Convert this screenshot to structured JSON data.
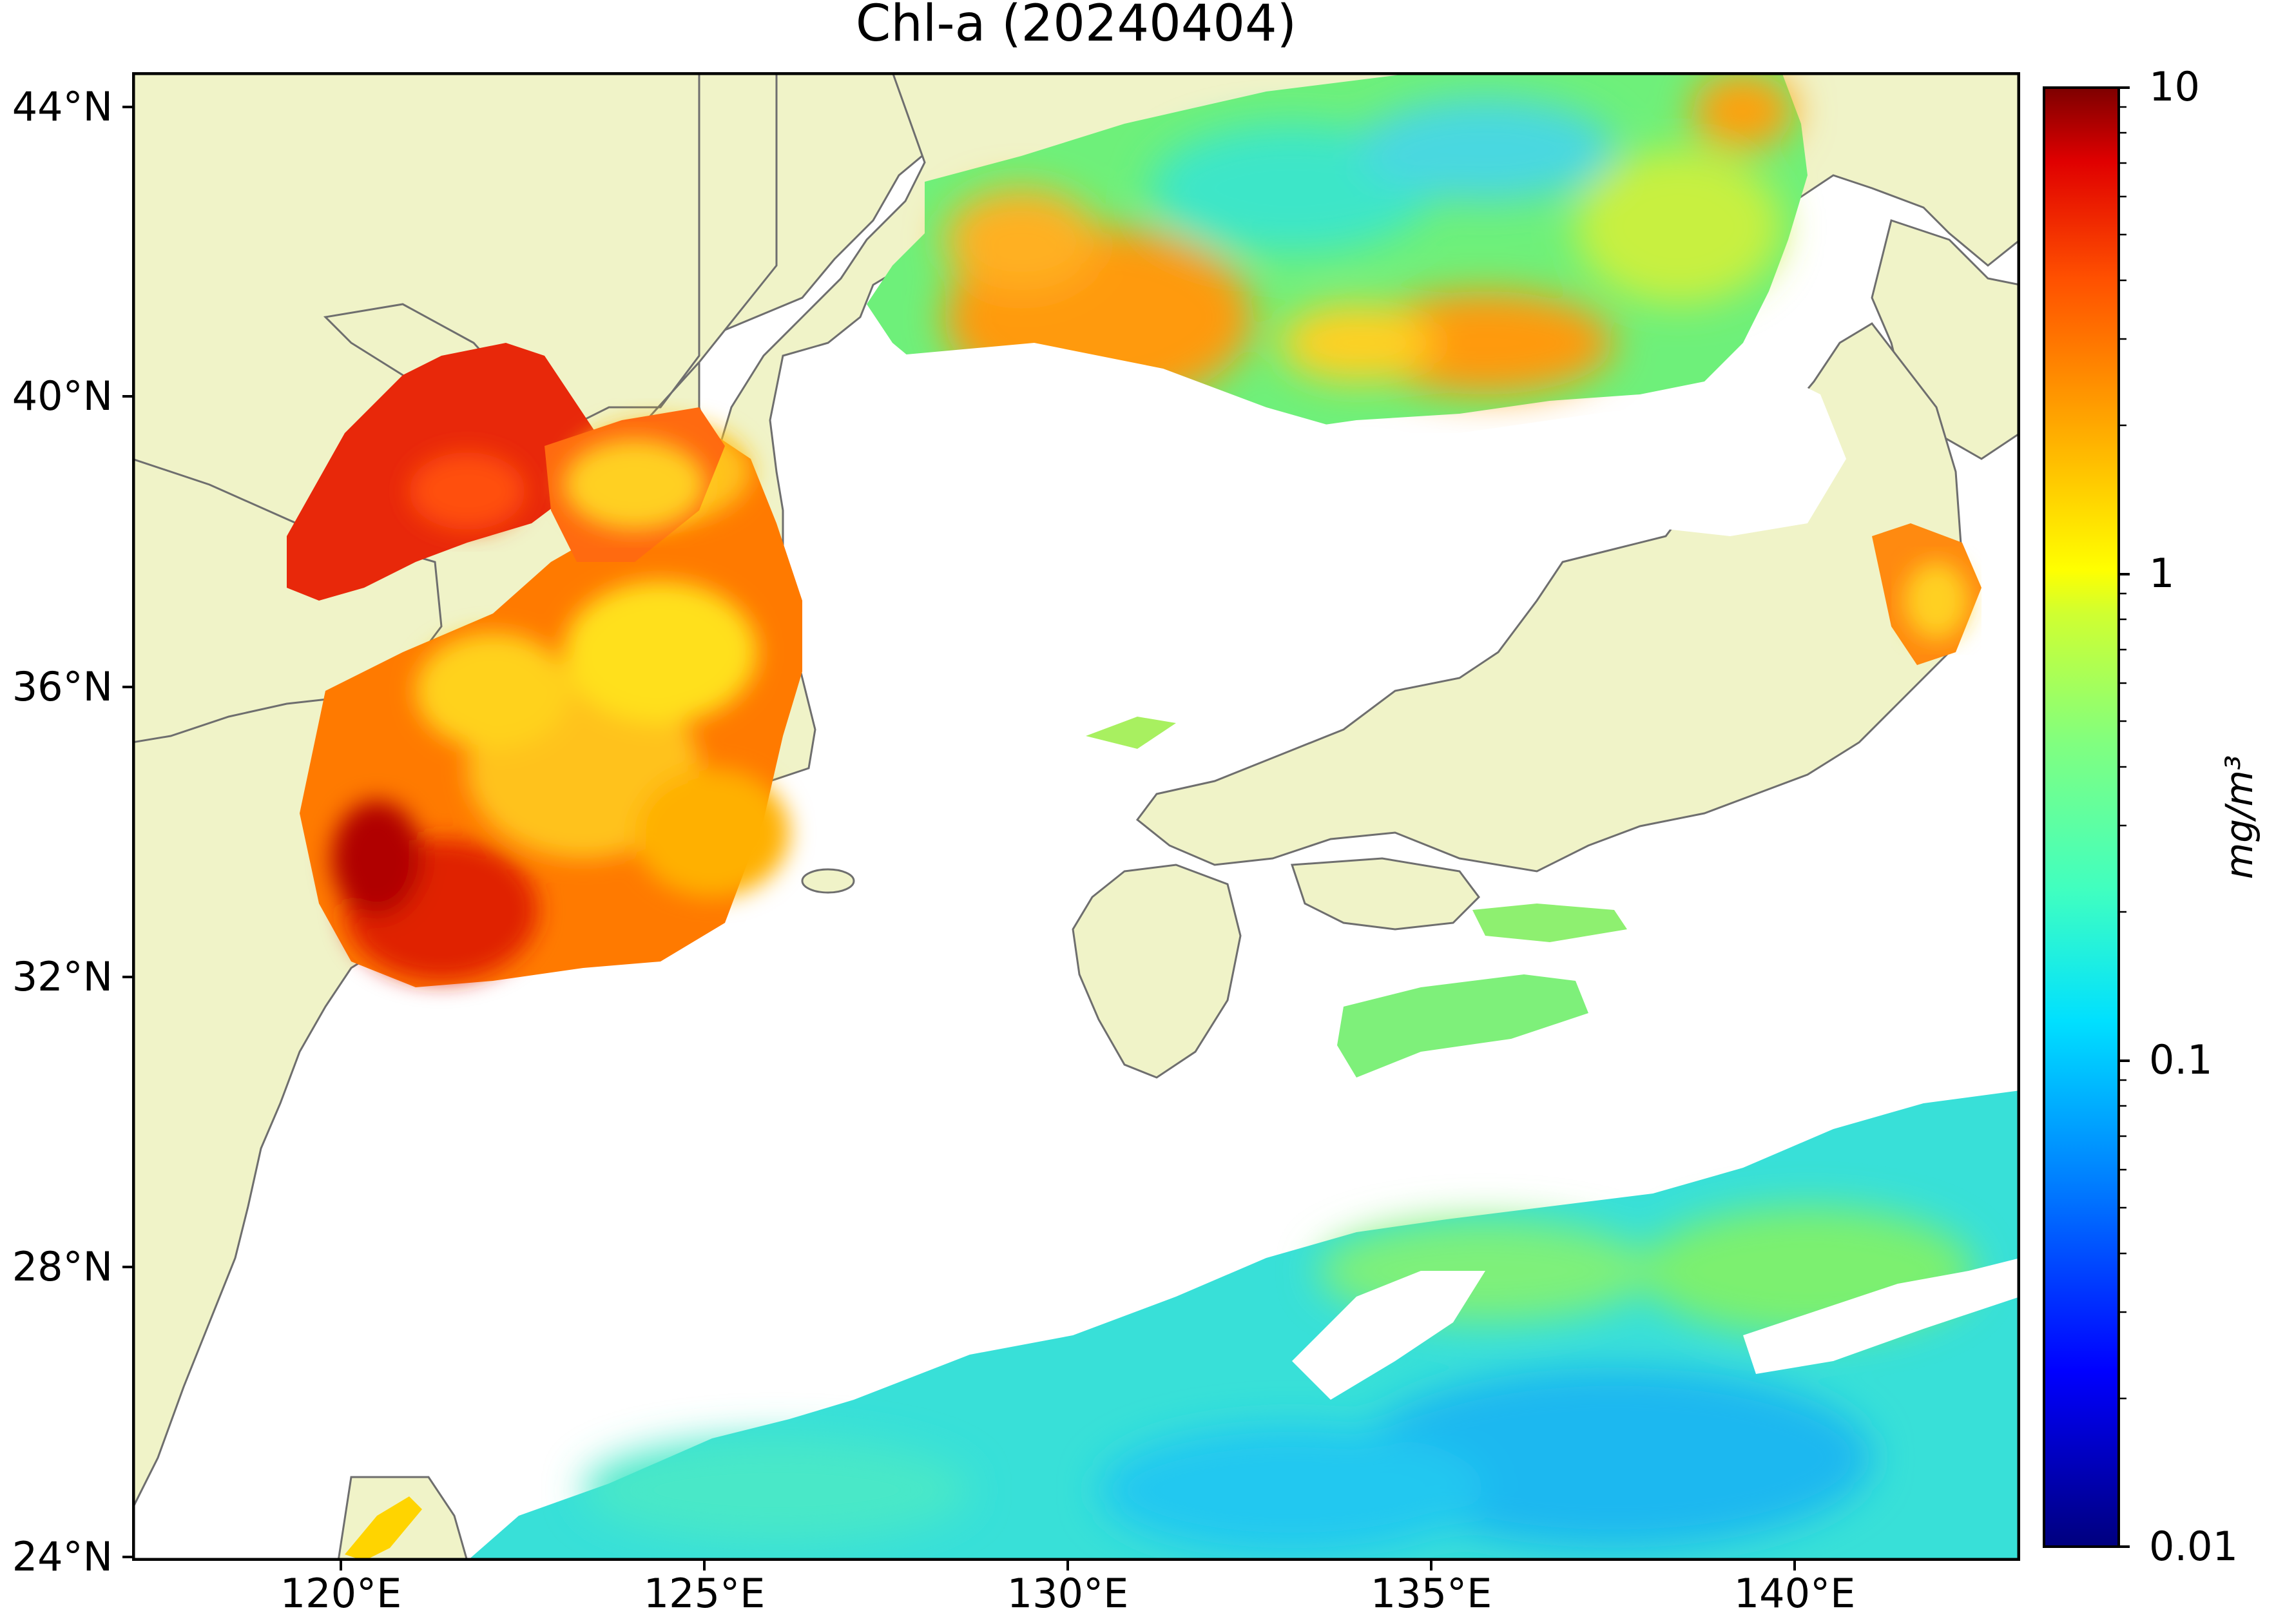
{
  "title": "Chl-a (20240404)",
  "map": {
    "lat_labels": [
      "44°N",
      "40°N",
      "36°N",
      "32°N",
      "28°N",
      "24°N"
    ],
    "lon_labels": [
      "120°E",
      "125°E",
      "130°E",
      "135°E",
      "140°E"
    ],
    "colors": {
      "land": "#f0f3c8",
      "coast": "#6e6e6e",
      "no_data": "#ffffff",
      "frame": "#000000"
    }
  },
  "colorbar": {
    "ticks": [
      "10",
      "1",
      "0.1",
      "0.01"
    ],
    "unit": "mg/m³",
    "scale": "log",
    "range": [
      0.01,
      10
    ],
    "colormap": "jet"
  }
}
